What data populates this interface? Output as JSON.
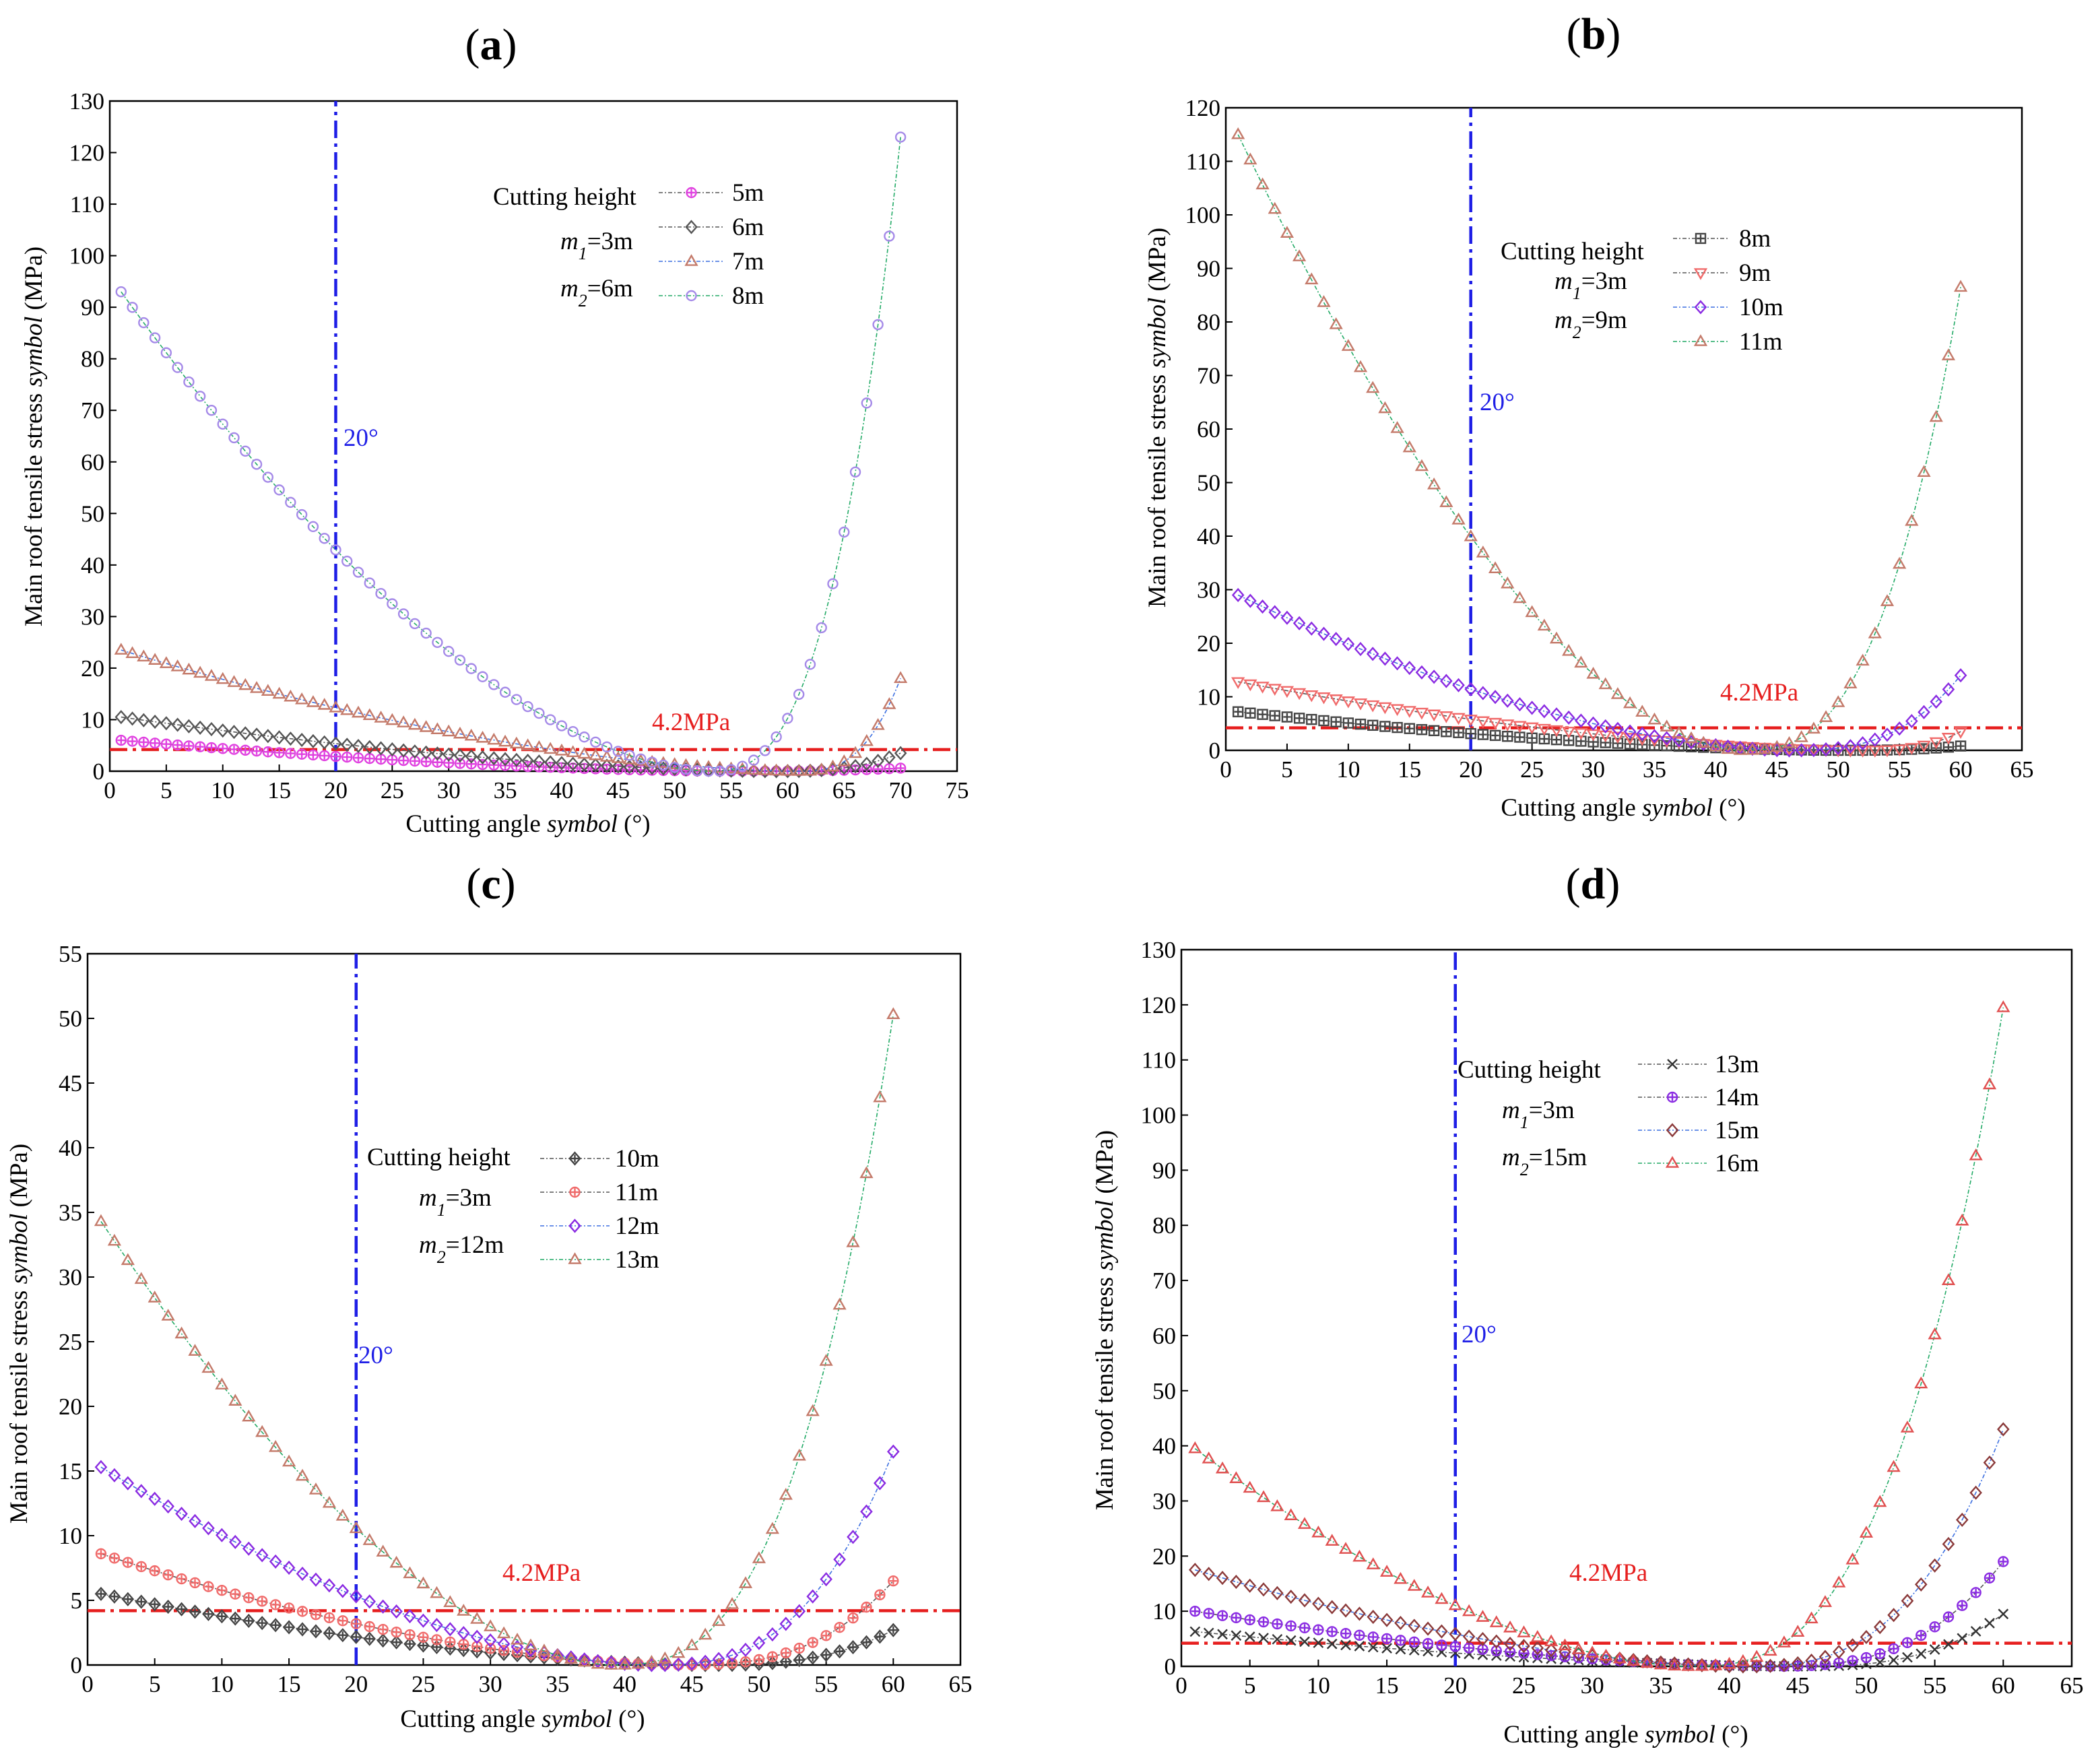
{
  "figure": {
    "background": "#ffffff",
    "panel_labels": [
      "(a)",
      "(b)",
      "(c)",
      "(d)"
    ]
  },
  "chart_data": [
    {
      "type": "line",
      "panel": "(a)",
      "xlabel": "Cutting angle symbol (°)",
      "ylabel": "Main roof tensile stress symbol (MPa)",
      "xlim": [
        0,
        75
      ],
      "ylim": [
        0,
        130
      ],
      "xticks": [
        0,
        5,
        10,
        15,
        20,
        25,
        30,
        35,
        40,
        45,
        50,
        55,
        60,
        65,
        70,
        75
      ],
      "yticks": [
        0,
        10,
        20,
        30,
        40,
        50,
        60,
        70,
        80,
        90,
        100,
        110,
        120,
        130
      ],
      "legend_title": "Cutting height",
      "legend_params": [
        "m1=3m",
        "m2=6m"
      ],
      "x_range": [
        1,
        70
      ],
      "series": [
        {
          "name": "5m",
          "color": "#e040e0",
          "marker": "circle-cross",
          "start": 6.0,
          "min_x": 55,
          "end": 0.6
        },
        {
          "name": "6m",
          "color": "#555555",
          "marker": "diamond",
          "start": 10.5,
          "min_x": 59,
          "end": 3.5
        },
        {
          "name": "7m",
          "color": "#c47a6a",
          "marker": "triangle",
          "start": 23.5,
          "min_x": 61,
          "end": 18.0
        },
        {
          "name": "8m",
          "color": "#a58ae8",
          "marker": "circle",
          "start": 93.0,
          "min_x": 53,
          "end": 123.0
        }
      ],
      "series_line_colors": [
        "#555555",
        "#555555",
        "#3c6fe0",
        "#22aa66"
      ],
      "reference_lines": [
        {
          "orientation": "vertical",
          "value": 20,
          "label": "20°",
          "color": "#1e1ee6"
        },
        {
          "orientation": "horizontal",
          "value": 4.2,
          "label": "4.2MPa",
          "color": "#e61e1e"
        }
      ]
    },
    {
      "type": "line",
      "panel": "(b)",
      "xlabel": "Cutting angle symbol (°)",
      "ylabel": "Main roof tensile stress symbol (MPa)",
      "xlim": [
        0,
        65
      ],
      "ylim": [
        0,
        120
      ],
      "xticks": [
        0,
        5,
        10,
        15,
        20,
        25,
        30,
        35,
        40,
        45,
        50,
        55,
        60,
        65
      ],
      "yticks": [
        0,
        10,
        20,
        30,
        40,
        50,
        60,
        70,
        80,
        90,
        100,
        110,
        120
      ],
      "legend_title": "Cutting height",
      "legend_params": [
        "m1=3m",
        "m2=9m"
      ],
      "x_range": [
        1,
        60
      ],
      "series": [
        {
          "name": "8m",
          "color": "#444444",
          "marker": "square-cross",
          "start": 7.2,
          "min_x": 50,
          "end": 0.8
        },
        {
          "name": "9m",
          "color": "#f06a6a",
          "marker": "triangle-down",
          "start": 12.8,
          "min_x": 52,
          "end": 3.5
        },
        {
          "name": "10m",
          "color": "#8a2be2",
          "marker": "diamond",
          "start": 29.0,
          "min_x": 46,
          "end": 14.0
        },
        {
          "name": "11m",
          "color": "#c47a6a",
          "marker": "triangle",
          "start": 115.0,
          "min_x": 42,
          "end": 86.5
        }
      ],
      "series_line_colors": [
        "#555555",
        "#555555",
        "#3c6fe0",
        "#22aa66"
      ],
      "reference_lines": [
        {
          "orientation": "vertical",
          "value": 20,
          "label": "20°",
          "color": "#1e1ee6"
        },
        {
          "orientation": "horizontal",
          "value": 4.2,
          "label": "4.2MPa",
          "color": "#e61e1e"
        }
      ]
    },
    {
      "type": "line",
      "panel": "(c)",
      "xlabel": "Cutting angle symbol (°)",
      "ylabel": "Main roof tensile stress symbol (MPa)",
      "xlim": [
        0,
        65
      ],
      "ylim": [
        0,
        55
      ],
      "xticks": [
        0,
        5,
        10,
        15,
        20,
        25,
        30,
        35,
        40,
        45,
        50,
        55,
        60,
        65
      ],
      "yticks": [
        0,
        5,
        10,
        15,
        20,
        25,
        30,
        35,
        40,
        45,
        50,
        55
      ],
      "legend_title": "Cutting height",
      "legend_params": [
        "m1=3m",
        "m2=12m"
      ],
      "x_range": [
        1,
        60
      ],
      "series": [
        {
          "name": "10m",
          "color": "#444444",
          "marker": "diamond-cross",
          "start": 5.5,
          "min_x": 46,
          "end": 2.7
        },
        {
          "name": "11m",
          "color": "#f06a6a",
          "marker": "circle-cross",
          "start": 8.6,
          "min_x": 44,
          "end": 6.5
        },
        {
          "name": "12m",
          "color": "#8a2be2",
          "marker": "diamond",
          "start": 15.3,
          "min_x": 42,
          "end": 16.5
        },
        {
          "name": "13m",
          "color": "#c47a6a",
          "marker": "triangle",
          "start": 34.3,
          "min_x": 39,
          "end": 50.3
        }
      ],
      "series_line_colors": [
        "#555555",
        "#555555",
        "#3c6fe0",
        "#22aa66"
      ],
      "reference_lines": [
        {
          "orientation": "vertical",
          "value": 20,
          "label": "20°",
          "color": "#1e1ee6"
        },
        {
          "orientation": "horizontal",
          "value": 4.2,
          "label": "4.2MPa",
          "color": "#e61e1e"
        }
      ]
    },
    {
      "type": "line",
      "panel": "(d)",
      "xlabel": "Cutting angle symbol (°)",
      "ylabel": "Main roof tensile stress symbol (MPa)",
      "xlim": [
        0,
        65
      ],
      "ylim": [
        0,
        130
      ],
      "xticks": [
        0,
        5,
        10,
        15,
        20,
        25,
        30,
        35,
        40,
        45,
        50,
        55,
        60,
        65
      ],
      "yticks": [
        0,
        10,
        20,
        30,
        40,
        50,
        60,
        70,
        80,
        90,
        100,
        110,
        120,
        130
      ],
      "legend_title": "Cutting height",
      "legend_params": [
        "m1=3m",
        "m2=15m"
      ],
      "x_range": [
        1,
        60
      ],
      "series": [
        {
          "name": "13m",
          "color": "#333333",
          "marker": "x",
          "start": 6.3,
          "min_x": 45,
          "end": 9.5
        },
        {
          "name": "14m",
          "color": "#8a2be2",
          "marker": "circle-cross",
          "start": 10.0,
          "min_x": 43,
          "end": 19.0
        },
        {
          "name": "15m",
          "color": "#8b3a3a",
          "marker": "diamond",
          "start": 17.5,
          "min_x": 41,
          "end": 43.0
        },
        {
          "name": "16m",
          "color": "#e05050",
          "marker": "triangle",
          "start": 39.5,
          "min_x": 37,
          "end": 119.5
        }
      ],
      "series_line_colors": [
        "#555555",
        "#555555",
        "#3c6fe0",
        "#22aa66"
      ],
      "reference_lines": [
        {
          "orientation": "vertical",
          "value": 20,
          "label": "20°",
          "color": "#1e1ee6"
        },
        {
          "orientation": "horizontal",
          "value": 4.2,
          "label": "4.2MPa",
          "color": "#e61e1e"
        }
      ]
    }
  ]
}
